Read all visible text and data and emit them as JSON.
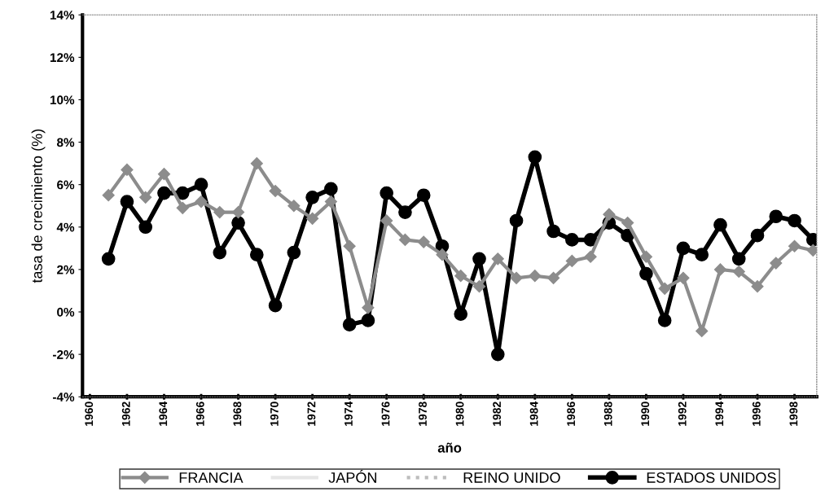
{
  "chart_data": {
    "type": "line",
    "xlabel": "año",
    "ylabel": "tasa de crecimiento (%)",
    "x": [
      1961,
      1962,
      1963,
      1964,
      1965,
      1966,
      1967,
      1968,
      1969,
      1970,
      1971,
      1972,
      1973,
      1974,
      1975,
      1976,
      1977,
      1978,
      1979,
      1980,
      1981,
      1982,
      1983,
      1984,
      1985,
      1986,
      1987,
      1988,
      1989,
      1990,
      1991,
      1992,
      1993,
      1994,
      1995,
      1996,
      1997,
      1998,
      1999
    ],
    "series": [
      {
        "name": "FRANCIA",
        "color": "#8c8c8c",
        "marker": "diamond",
        "values": [
          5.5,
          6.7,
          5.4,
          6.5,
          4.9,
          5.2,
          4.7,
          4.7,
          7.0,
          5.7,
          5.0,
          4.4,
          5.2,
          3.1,
          0.2,
          4.3,
          3.4,
          3.3,
          2.7,
          1.7,
          1.2,
          2.5,
          1.6,
          1.7,
          1.6,
          2.4,
          2.6,
          4.6,
          4.2,
          2.6,
          1.1,
          1.6,
          -0.9,
          2.0,
          1.9,
          1.2,
          2.3,
          3.1,
          2.9
        ]
      },
      {
        "name": "JAPÓN",
        "color": "#e6e6e6",
        "marker": "none",
        "values": [
          null,
          null,
          null,
          null,
          null,
          null,
          null,
          null,
          null,
          null,
          null,
          null,
          null,
          null,
          null,
          null,
          null,
          null,
          null,
          null,
          null,
          null,
          null,
          null,
          null,
          null,
          null,
          null,
          null,
          null,
          null,
          null,
          null,
          null,
          null,
          null,
          null,
          null,
          null
        ]
      },
      {
        "name": "REINO UNIDO",
        "color": "#bdbdbd",
        "marker": "none",
        "line_style": "dotted",
        "values": [
          null,
          null,
          null,
          null,
          null,
          null,
          null,
          null,
          null,
          null,
          null,
          null,
          null,
          null,
          null,
          null,
          null,
          null,
          null,
          null,
          null,
          null,
          null,
          null,
          null,
          null,
          null,
          null,
          null,
          null,
          null,
          null,
          null,
          null,
          null,
          null,
          null,
          null,
          null
        ]
      },
      {
        "name": "ESTADOS UNIDOS",
        "color": "#000000",
        "marker": "circle",
        "values": [
          2.5,
          5.2,
          4.0,
          5.6,
          5.6,
          6.0,
          2.8,
          4.2,
          2.7,
          0.3,
          2.8,
          5.4,
          5.8,
          -0.6,
          -0.4,
          5.6,
          4.7,
          5.5,
          3.1,
          -0.1,
          2.5,
          -2.0,
          4.3,
          7.3,
          3.8,
          3.4,
          3.4,
          4.2,
          3.6,
          1.8,
          -0.4,
          3.0,
          2.7,
          4.1,
          2.5,
          3.6,
          4.5,
          4.3,
          3.4
        ]
      }
    ],
    "xlim": [
      1959.6,
      1999.2
    ],
    "xticks": [
      1960,
      1962,
      1964,
      1966,
      1968,
      1970,
      1972,
      1974,
      1976,
      1978,
      1980,
      1982,
      1984,
      1986,
      1988,
      1990,
      1992,
      1994,
      1996,
      1998
    ],
    "ylim": [
      -4,
      14
    ],
    "yticks": [
      {
        "value": -4,
        "label": "-4%"
      },
      {
        "value": -2,
        "label": "-2%"
      },
      {
        "value": 0,
        "label": "0%"
      },
      {
        "value": 2,
        "label": "2%"
      },
      {
        "value": 4,
        "label": "4%"
      },
      {
        "value": 6,
        "label": "6%"
      },
      {
        "value": 8,
        "label": "8%"
      },
      {
        "value": 10,
        "label": "10%"
      },
      {
        "value": 12,
        "label": "12%"
      },
      {
        "value": 14,
        "label": "14%"
      }
    ],
    "grid": false,
    "legend": "bottom"
  }
}
